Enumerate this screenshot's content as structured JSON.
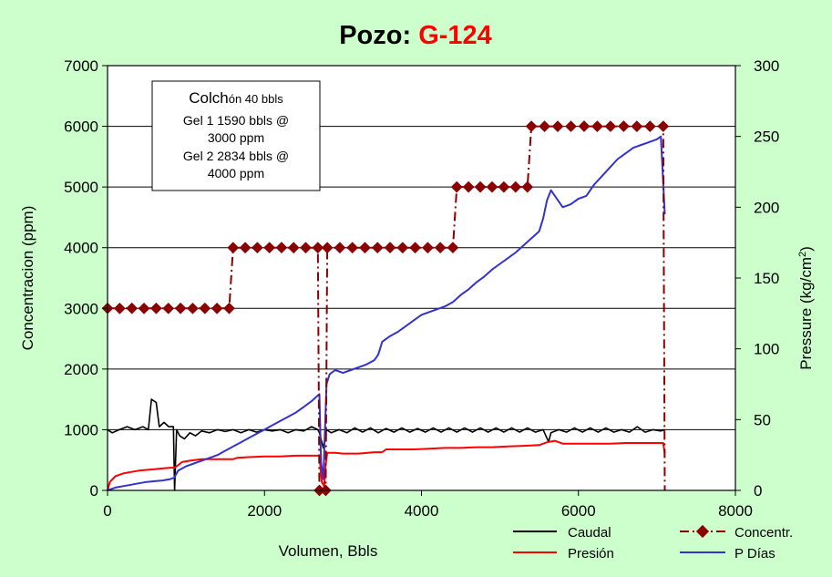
{
  "chart_data": {
    "type": "line",
    "title": {
      "prefix": "Pozo: ",
      "well": "G-124"
    },
    "xlabel": "Volumen, Bbls",
    "ylabel_left": "Concentracion (ppm)",
    "ylabel_right": {
      "main": "Pressure (kg/cm",
      "sup": "2",
      "close": ")"
    },
    "xlim": [
      0,
      8000
    ],
    "ylim_left": [
      0,
      7000
    ],
    "ylim_right": [
      0,
      300
    ],
    "x_ticks": [
      "0",
      "2000",
      "4000",
      "6000",
      "8000"
    ],
    "y_left_ticks": [
      "0",
      "1000",
      "2000",
      "3000",
      "4000",
      "5000",
      "6000",
      "7000"
    ],
    "y_right_ticks": [
      "0",
      "50",
      "100",
      "150",
      "200",
      "250",
      "300"
    ],
    "grid": "horizontal",
    "legend_position": "bottom-right",
    "colors": {
      "background": "#ccffcc",
      "plot": "#ffffff",
      "caudal": "#000000",
      "presion": "#ff0000",
      "concentr": "#8b0000",
      "pdias": "#3333cc",
      "title_well": "#ff0000"
    },
    "annotation": {
      "line1_big": "Colch",
      "line1_small": "ón  40 bbls",
      "line2": "Gel 1  1590 bbls @",
      "line3": "3000 ppm",
      "line4": "Gel 2  2834 bbls @",
      "line5": "4000 ppm"
    },
    "series": [
      {
        "key": "caudal",
        "name": "Caudal",
        "axis": "left",
        "style": "solid",
        "points": [
          [
            0,
            1000
          ],
          [
            60,
            950
          ],
          [
            150,
            1000
          ],
          [
            250,
            1050
          ],
          [
            350,
            1000
          ],
          [
            450,
            1050
          ],
          [
            520,
            1000
          ],
          [
            560,
            1500
          ],
          [
            620,
            1450
          ],
          [
            660,
            1050
          ],
          [
            720,
            1120
          ],
          [
            780,
            1050
          ],
          [
            840,
            1050
          ],
          [
            855,
            0
          ],
          [
            880,
            1000
          ],
          [
            920,
            900
          ],
          [
            980,
            850
          ],
          [
            1050,
            950
          ],
          [
            1120,
            900
          ],
          [
            1200,
            980
          ],
          [
            1300,
            950
          ],
          [
            1400,
            1000
          ],
          [
            1500,
            970
          ],
          [
            1600,
            1000
          ],
          [
            1700,
            950
          ],
          [
            1800,
            1000
          ],
          [
            1900,
            960
          ],
          [
            2000,
            1000
          ],
          [
            2100,
            980
          ],
          [
            2200,
            1000
          ],
          [
            2300,
            950
          ],
          [
            2400,
            1000
          ],
          [
            2500,
            980
          ],
          [
            2600,
            1050
          ],
          [
            2680,
            1000
          ],
          [
            2700,
            950
          ],
          [
            2750,
            700
          ],
          [
            2790,
            1000
          ],
          [
            2850,
            950
          ],
          [
            2950,
            1000
          ],
          [
            3050,
            950
          ],
          [
            3150,
            1030
          ],
          [
            3250,
            960
          ],
          [
            3350,
            1030
          ],
          [
            3450,
            950
          ],
          [
            3550,
            1020
          ],
          [
            3650,
            960
          ],
          [
            3750,
            1030
          ],
          [
            3850,
            960
          ],
          [
            3950,
            1020
          ],
          [
            4050,
            960
          ],
          [
            4150,
            1030
          ],
          [
            4250,
            960
          ],
          [
            4350,
            1030
          ],
          [
            4450,
            960
          ],
          [
            4550,
            1030
          ],
          [
            4650,
            960
          ],
          [
            4750,
            1030
          ],
          [
            4850,
            960
          ],
          [
            4950,
            1030
          ],
          [
            5050,
            960
          ],
          [
            5150,
            1030
          ],
          [
            5250,
            960
          ],
          [
            5350,
            1030
          ],
          [
            5450,
            960
          ],
          [
            5550,
            1000
          ],
          [
            5620,
            800
          ],
          [
            5650,
            950
          ],
          [
            5750,
            1000
          ],
          [
            5850,
            960
          ],
          [
            5950,
            1030
          ],
          [
            6050,
            960
          ],
          [
            6150,
            1030
          ],
          [
            6250,
            960
          ],
          [
            6350,
            1030
          ],
          [
            6450,
            960
          ],
          [
            6550,
            1000
          ],
          [
            6650,
            960
          ],
          [
            6750,
            1050
          ],
          [
            6850,
            960
          ],
          [
            6950,
            1000
          ],
          [
            7050,
            980
          ],
          [
            7100,
            1000
          ]
        ]
      },
      {
        "key": "presion",
        "name": "Presión",
        "axis": "right",
        "style": "solid",
        "points": [
          [
            0,
            0
          ],
          [
            30,
            6
          ],
          [
            100,
            10
          ],
          [
            200,
            12
          ],
          [
            300,
            13
          ],
          [
            400,
            14
          ],
          [
            500,
            14.5
          ],
          [
            600,
            15
          ],
          [
            700,
            15.5
          ],
          [
            800,
            16
          ],
          [
            850,
            16
          ],
          [
            880,
            17
          ],
          [
            950,
            20
          ],
          [
            1050,
            21
          ],
          [
            1200,
            22
          ],
          [
            1400,
            22
          ],
          [
            1600,
            22
          ],
          [
            1650,
            23
          ],
          [
            1800,
            23.5
          ],
          [
            2000,
            24
          ],
          [
            2200,
            24
          ],
          [
            2400,
            24.5
          ],
          [
            2600,
            24.5
          ],
          [
            2700,
            24.5
          ],
          [
            2730,
            6
          ],
          [
            2760,
            3
          ],
          [
            2780,
            18
          ],
          [
            2800,
            26.5
          ],
          [
            2900,
            26.5
          ],
          [
            3000,
            26
          ],
          [
            3200,
            26
          ],
          [
            3400,
            27
          ],
          [
            3500,
            27
          ],
          [
            3550,
            29
          ],
          [
            3700,
            29
          ],
          [
            3900,
            29
          ],
          [
            4100,
            29.5
          ],
          [
            4300,
            30
          ],
          [
            4500,
            30
          ],
          [
            4700,
            30.5
          ],
          [
            4900,
            30.5
          ],
          [
            5100,
            31
          ],
          [
            5300,
            31.5
          ],
          [
            5500,
            32
          ],
          [
            5600,
            34
          ],
          [
            5700,
            35
          ],
          [
            5800,
            33
          ],
          [
            6000,
            33
          ],
          [
            6200,
            33
          ],
          [
            6400,
            33
          ],
          [
            6600,
            33.5
          ],
          [
            6800,
            33.5
          ],
          [
            7000,
            33.5
          ],
          [
            7080,
            33.5
          ],
          [
            7100,
            26
          ]
        ]
      },
      {
        "key": "pdias",
        "name": "P Días",
        "axis": "right",
        "style": "solid",
        "points": [
          [
            0,
            0
          ],
          [
            100,
            2
          ],
          [
            200,
            3
          ],
          [
            300,
            4
          ],
          [
            400,
            5
          ],
          [
            500,
            6
          ],
          [
            600,
            6.5
          ],
          [
            700,
            7
          ],
          [
            800,
            8
          ],
          [
            850,
            9
          ],
          [
            900,
            14
          ],
          [
            1000,
            17
          ],
          [
            1100,
            19
          ],
          [
            1200,
            21
          ],
          [
            1300,
            23
          ],
          [
            1400,
            25
          ],
          [
            1500,
            28
          ],
          [
            1600,
            31
          ],
          [
            1700,
            34
          ],
          [
            1800,
            37
          ],
          [
            1900,
            40
          ],
          [
            2000,
            43
          ],
          [
            2100,
            46
          ],
          [
            2200,
            49
          ],
          [
            2300,
            52
          ],
          [
            2400,
            55
          ],
          [
            2500,
            59
          ],
          [
            2600,
            63
          ],
          [
            2700,
            68
          ],
          [
            2720,
            20
          ],
          [
            2750,
            8
          ],
          [
            2790,
            75
          ],
          [
            2830,
            82
          ],
          [
            2900,
            85
          ],
          [
            3000,
            83
          ],
          [
            3100,
            85
          ],
          [
            3200,
            87
          ],
          [
            3300,
            89
          ],
          [
            3400,
            92
          ],
          [
            3450,
            96
          ],
          [
            3500,
            105
          ],
          [
            3600,
            109
          ],
          [
            3700,
            112
          ],
          [
            3800,
            116
          ],
          [
            3900,
            120
          ],
          [
            4000,
            124
          ],
          [
            4100,
            126
          ],
          [
            4200,
            128
          ],
          [
            4300,
            130
          ],
          [
            4400,
            133
          ],
          [
            4500,
            138
          ],
          [
            4600,
            142
          ],
          [
            4700,
            147
          ],
          [
            4800,
            151
          ],
          [
            4900,
            156
          ],
          [
            5000,
            160
          ],
          [
            5100,
            164
          ],
          [
            5200,
            168
          ],
          [
            5300,
            173
          ],
          [
            5400,
            178
          ],
          [
            5500,
            183
          ],
          [
            5550,
            192
          ],
          [
            5600,
            205
          ],
          [
            5650,
            212
          ],
          [
            5700,
            208
          ],
          [
            5800,
            200
          ],
          [
            5900,
            202
          ],
          [
            6000,
            206
          ],
          [
            6100,
            208
          ],
          [
            6200,
            216
          ],
          [
            6300,
            222
          ],
          [
            6400,
            228
          ],
          [
            6500,
            234
          ],
          [
            6600,
            238
          ],
          [
            6700,
            242
          ],
          [
            6800,
            244
          ],
          [
            6900,
            246
          ],
          [
            7000,
            248
          ],
          [
            7050,
            250
          ],
          [
            7100,
            195
          ]
        ]
      },
      {
        "key": "concentr",
        "name": "Concentr.",
        "axis": "left",
        "style": "dashdot-diamond",
        "points": [
          [
            0,
            3000
          ],
          [
            1550,
            3000
          ],
          [
            1600,
            4000
          ],
          [
            2680,
            4000
          ],
          [
            2700,
            0
          ],
          [
            2780,
            0
          ],
          [
            2800,
            4000
          ],
          [
            4400,
            4000
          ],
          [
            4450,
            5000
          ],
          [
            5350,
            5000
          ],
          [
            5400,
            6000
          ],
          [
            7080,
            6000
          ],
          [
            7100,
            0
          ]
        ]
      }
    ]
  }
}
